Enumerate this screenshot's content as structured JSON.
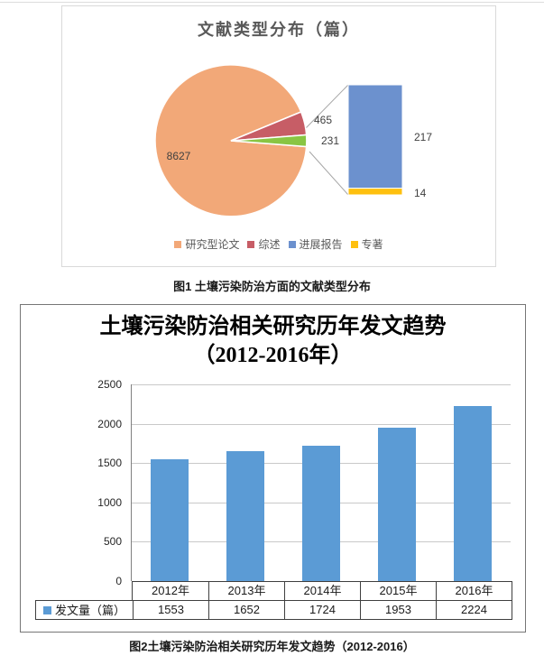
{
  "page": {
    "background": "#FFFFFF",
    "top_rule_color": "#DDDDDD"
  },
  "chart_data": [
    {
      "type": "pie",
      "subtype": "bar-of-pie",
      "title": "文献类型分布（篇）",
      "caption": "图1  土壤污染防治方面的文献类型分布",
      "series": [
        {
          "label": "研究型论文",
          "value": 8627,
          "color": "#F2A878",
          "in": "pie"
        },
        {
          "label": "综述",
          "value": 465,
          "color": "#C75D66",
          "in": "pie"
        },
        {
          "label": "进展报告",
          "value": 217,
          "color": "#6C91CE",
          "in": "bar"
        },
        {
          "label": "专著",
          "value": 14,
          "color": "#FEC00F",
          "in": "bar"
        }
      ],
      "breakout_slice_total": 231,
      "breakout_slice_color": "#89C543",
      "legend_position": "bottom",
      "value_labels_shown": [
        8627,
        465,
        231,
        217,
        14
      ]
    },
    {
      "type": "bar",
      "title": "土壤污染防治相关研究历年发文趋势（2012-2016年）",
      "title_lines": [
        "土壤污染防治相关研究历年发文趋势",
        "（2012-2016年）"
      ],
      "caption": "图2土壤污染防治相关研究历年发文趋势（2012-2016）",
      "categories": [
        "2012年",
        "2013年",
        "2014年",
        "2015年",
        "2016年"
      ],
      "series": [
        {
          "name": "发文量（篇）",
          "color": "#5B9BD5",
          "values": [
            1553,
            1652,
            1724,
            1953,
            2224
          ]
        }
      ],
      "ylim": [
        0,
        2500
      ],
      "ytick_interval": 500,
      "ytick_labels": [
        "0",
        "500",
        "1000",
        "1500",
        "2000",
        "2500"
      ],
      "grid": true,
      "show_data_table": true,
      "legend_position": "data-table-left"
    }
  ]
}
